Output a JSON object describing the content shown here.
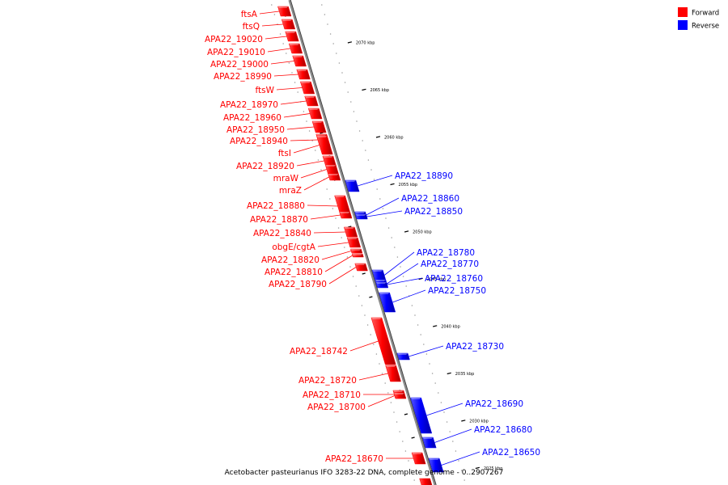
{
  "caption": "Acetobacter pasteurianus IFO 3283-22 DNA, complete genome - 0..2907267",
  "legend": [
    {
      "label": "Forward",
      "color": "#ff0000"
    },
    {
      "label": "Reverse",
      "color": "#0000ff"
    }
  ],
  "colors": {
    "forward": "#ff0000",
    "reverse": "#0000ff",
    "backbone": "#7a7a7a"
  },
  "ticks": [
    {
      "label": "2070 kbp",
      "kbp": 2070
    },
    {
      "label": "2065 kbp",
      "kbp": 2065
    },
    {
      "label": "2060 kbp",
      "kbp": 2060
    },
    {
      "label": "2055 kbp",
      "kbp": 2055
    },
    {
      "label": "2050 kbp",
      "kbp": 2050
    },
    {
      "label": "2045 kbp",
      "kbp": 2045
    },
    {
      "label": "2040 kbp",
      "kbp": 2040
    },
    {
      "label": "2035 kbp",
      "kbp": 2035
    },
    {
      "label": "2030 kbp",
      "kbp": 2030
    },
    {
      "label": "2025 kbp",
      "kbp": 2025
    }
  ],
  "genes": [
    {
      "name": "ftsA",
      "strand": "forward"
    },
    {
      "name": "ftsQ",
      "strand": "forward"
    },
    {
      "name": "APA22_19020",
      "strand": "forward"
    },
    {
      "name": "APA22_19010",
      "strand": "forward"
    },
    {
      "name": "APA22_19000",
      "strand": "forward"
    },
    {
      "name": "APA22_18990",
      "strand": "forward"
    },
    {
      "name": "ftsW",
      "strand": "forward"
    },
    {
      "name": "APA22_18970",
      "strand": "forward"
    },
    {
      "name": "APA22_18960",
      "strand": "forward"
    },
    {
      "name": "APA22_18950",
      "strand": "forward"
    },
    {
      "name": "APA22_18940",
      "strand": "forward"
    },
    {
      "name": "ftsI",
      "strand": "forward"
    },
    {
      "name": "APA22_18920",
      "strand": "forward"
    },
    {
      "name": "mraW",
      "strand": "forward"
    },
    {
      "name": "mraZ",
      "strand": "forward"
    },
    {
      "name": "APA22_18880",
      "strand": "forward"
    },
    {
      "name": "APA22_18870",
      "strand": "forward"
    },
    {
      "name": "APA22_18840",
      "strand": "forward"
    },
    {
      "name": "obgE/cgtA",
      "strand": "forward"
    },
    {
      "name": "APA22_18820",
      "strand": "forward"
    },
    {
      "name": "APA22_18810",
      "strand": "forward"
    },
    {
      "name": "APA22_18790",
      "strand": "forward"
    },
    {
      "name": "APA22_18742",
      "strand": "forward"
    },
    {
      "name": "APA22_18720",
      "strand": "forward"
    },
    {
      "name": "APA22_18710",
      "strand": "forward"
    },
    {
      "name": "APA22_18700",
      "strand": "forward"
    },
    {
      "name": "APA22_18670",
      "strand": "forward"
    },
    {
      "name": "APA22_18890",
      "strand": "reverse"
    },
    {
      "name": "APA22_18860",
      "strand": "reverse"
    },
    {
      "name": "APA22_18850",
      "strand": "reverse"
    },
    {
      "name": "APA22_18780",
      "strand": "reverse"
    },
    {
      "name": "APA22_18770",
      "strand": "reverse"
    },
    {
      "name": "APA22_18760",
      "strand": "reverse"
    },
    {
      "name": "APA22_18750",
      "strand": "reverse"
    },
    {
      "name": "APA22_18730",
      "strand": "reverse"
    },
    {
      "name": "APA22_18690",
      "strand": "reverse"
    },
    {
      "name": "APA22_18680",
      "strand": "reverse"
    },
    {
      "name": "APA22_18650",
      "strand": "reverse"
    }
  ]
}
